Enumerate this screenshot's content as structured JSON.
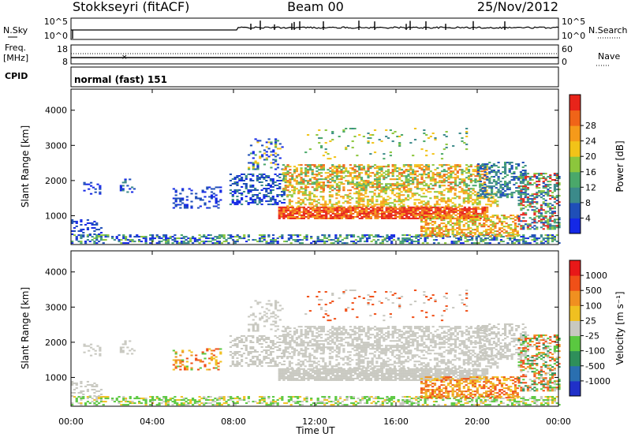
{
  "header": {
    "station": "Stokkseyri (fitACF)",
    "beam": "Beam 00",
    "date": "25/Nov/2012"
  },
  "strips": {
    "nsky_label": "N.Sky",
    "nsky_ticks": [
      "10^5",
      "10^0"
    ],
    "nsearch_label": "N.Search",
    "freq_label": "Freq.",
    "freq_unit": "[MHz]",
    "freq_ticks": [
      "18",
      "8"
    ],
    "nave_label": "Nave",
    "nave_ticks": [
      "60",
      "0"
    ],
    "cpid_label": "CPID",
    "cpid_value": "normal (fast) 151"
  },
  "chart_data": [
    {
      "type": "heatmap",
      "name": "power",
      "ylabel": "Slant Range [km]",
      "xlabel": "Time UT",
      "x_ticks": [
        "00:00",
        "04:00",
        "08:00",
        "12:00",
        "16:00",
        "20:00",
        "00:00"
      ],
      "x_range": [
        0,
        24
      ],
      "y_ticks": [
        1000,
        2000,
        3000,
        4000
      ],
      "y_range": [
        180,
        4600
      ],
      "colorbar": {
        "label": "Power [dB]",
        "ticks": [
          "4",
          "8",
          "12",
          "16",
          "20",
          "24",
          "28"
        ],
        "colors": [
          "#1428e6",
          "#1f4fb8",
          "#3b8a8a",
          "#4aa86a",
          "#8cc63c",
          "#f2c318",
          "#f59a1a",
          "#f06418",
          "#e8241a"
        ]
      }
    },
    {
      "type": "heatmap",
      "name": "velocity",
      "ylabel": "Slant Range [km]",
      "xlabel": "Time UT",
      "x_ticks": [
        "00:00",
        "04:00",
        "08:00",
        "12:00",
        "16:00",
        "20:00",
        "00:00"
      ],
      "x_range": [
        0,
        24
      ],
      "y_ticks": [
        1000,
        2000,
        3000,
        4000
      ],
      "y_range": [
        180,
        4600
      ],
      "colorbar": {
        "label": "Velocity [m s⁻¹]",
        "ticks": [
          "1000",
          "500",
          "100",
          "25",
          "-25",
          "-100",
          "-500",
          "-1000"
        ],
        "colors": [
          "#2030c8",
          "#2a6fb0",
          "#2e8f5a",
          "#5ac840",
          "#c8c8c0",
          "#f0c020",
          "#f09020",
          "#f05018",
          "#e81818"
        ]
      }
    }
  ]
}
